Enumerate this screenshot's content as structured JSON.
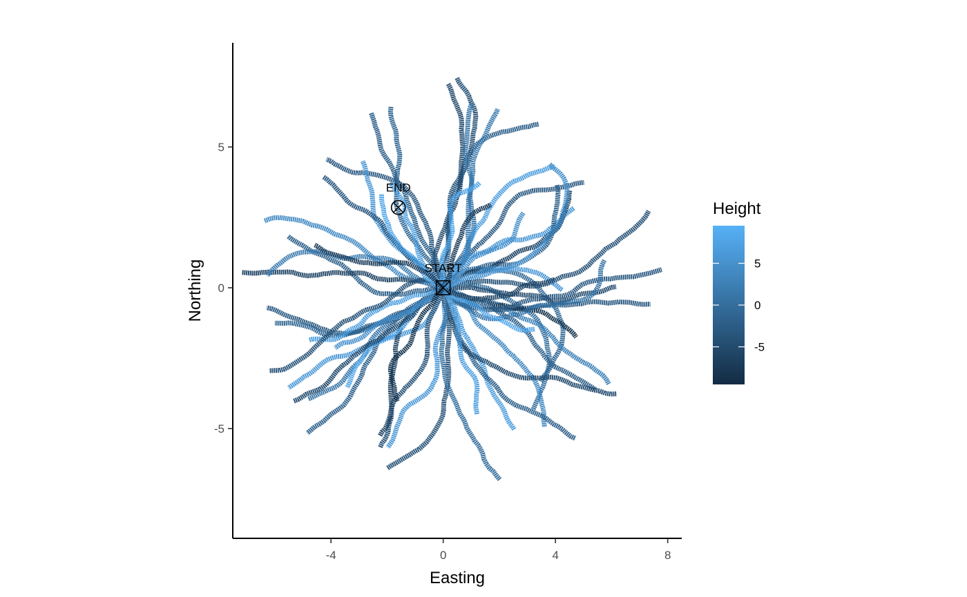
{
  "chart_data": {
    "type": "line",
    "xlabel": "Easting",
    "ylabel": "Northing",
    "xlim": [
      -7.5,
      8.5
    ],
    "ylim": [
      -8.9,
      8.7
    ],
    "xticks": [
      -4,
      0,
      4,
      8
    ],
    "xtick_labels": [
      "-4",
      "0",
      "4",
      "8"
    ],
    "yticks": [
      -5,
      0,
      5
    ],
    "ytick_labels": [
      "-5",
      "0",
      "5"
    ],
    "legend": {
      "title": "Height",
      "position": "right",
      "range": [
        -9.5,
        9.5
      ],
      "ticks": [
        -5,
        0,
        5
      ],
      "tick_labels": [
        "-5",
        "0",
        "5"
      ],
      "color_low": "#132B43",
      "color_high": "#56B1F7"
    },
    "markers": [
      {
        "label": "START",
        "x": 0,
        "y": 0,
        "shape": "square-cross"
      },
      {
        "label": "END",
        "x": -1.6,
        "y": 2.85,
        "shape": "circle-cross"
      }
    ],
    "tracks": [
      {
        "angle": 95,
        "length": 7.9,
        "height": -4
      },
      {
        "angle": 80,
        "length": 7.7,
        "height": -2
      },
      {
        "angle": 100,
        "length": 7.0,
        "height": -1
      },
      {
        "angle": 110,
        "length": 6.9,
        "height": -3
      },
      {
        "angle": 120,
        "length": 7.6,
        "height": -5
      },
      {
        "angle": 105,
        "length": 6.8,
        "height": -2
      },
      {
        "angle": 72,
        "length": 6.7,
        "height": -3
      },
      {
        "angle": 60,
        "length": 5.7,
        "height": 6
      },
      {
        "angle": 55,
        "length": 6.9,
        "height": 1
      },
      {
        "angle": 48,
        "length": 6.2,
        "height": 7
      },
      {
        "angle": 40,
        "length": 6.3,
        "height": -2
      },
      {
        "angle": 35,
        "length": 7.6,
        "height": -1
      },
      {
        "angle": 30,
        "length": 6.9,
        "height": 2
      },
      {
        "angle": 22,
        "length": 6.1,
        "height": -6
      },
      {
        "angle": 15,
        "length": 7.3,
        "height": 5
      },
      {
        "angle": 8,
        "length": 8.3,
        "height": -4
      },
      {
        "angle": 2,
        "length": 7.1,
        "height": 0
      },
      {
        "angle": -5,
        "length": 7.0,
        "height": 3
      },
      {
        "angle": -12,
        "length": 6.3,
        "height": -5
      },
      {
        "angle": -20,
        "length": 7.6,
        "height": -3
      },
      {
        "angle": -28,
        "length": 5.2,
        "height": -8
      },
      {
        "angle": -35,
        "length": 6.4,
        "height": 4
      },
      {
        "angle": -42,
        "length": 6.7,
        "height": -2
      },
      {
        "angle": -50,
        "length": 5.7,
        "height": 7
      },
      {
        "angle": -58,
        "length": 7.4,
        "height": -4
      },
      {
        "angle": -64,
        "length": 8.3,
        "height": -3
      },
      {
        "angle": -70,
        "length": 7.2,
        "height": 1
      },
      {
        "angle": -78,
        "length": 6.4,
        "height": 6
      },
      {
        "angle": -85,
        "length": 7.5,
        "height": -2
      },
      {
        "angle": -92,
        "length": 8.1,
        "height": -5
      },
      {
        "angle": -98,
        "length": 7.4,
        "height": 0
      },
      {
        "angle": -104,
        "length": 6.9,
        "height": 6
      },
      {
        "angle": -110,
        "length": 6.3,
        "height": -4
      },
      {
        "angle": -118,
        "length": 6.9,
        "height": -3
      },
      {
        "angle": -126,
        "length": 6.4,
        "height": 1
      },
      {
        "angle": -134,
        "length": 7.3,
        "height": -2
      },
      {
        "angle": -142,
        "length": 6.1,
        "height": -6
      },
      {
        "angle": -150,
        "length": 5.1,
        "height": 8
      },
      {
        "angle": -158,
        "length": 6.8,
        "height": -5
      },
      {
        "angle": -166,
        "length": 6.5,
        "height": -1
      },
      {
        "angle": -172,
        "length": 5.3,
        "height": 7
      },
      {
        "angle": 178,
        "length": 6.2,
        "height": -2
      },
      {
        "angle": 170,
        "length": 7.0,
        "height": 4
      },
      {
        "angle": 162,
        "length": 7.3,
        "height": -6
      },
      {
        "angle": 155,
        "length": 6.9,
        "height": 2
      },
      {
        "angle": 148,
        "length": 7.3,
        "height": -4
      },
      {
        "angle": 140,
        "length": 5.6,
        "height": 6
      },
      {
        "angle": 132,
        "length": 5.9,
        "height": -3
      },
      {
        "angle": 126,
        "length": 4.3,
        "height": 7
      },
      {
        "angle": 88,
        "length": 4.4,
        "height": 8
      },
      {
        "angle": 66,
        "length": 3.6,
        "height": -7
      },
      {
        "angle": 44,
        "length": 4.1,
        "height": 5
      },
      {
        "angle": 12,
        "length": 4.6,
        "height": 6
      },
      {
        "angle": -18,
        "length": 3.7,
        "height": 8
      },
      {
        "angle": -45,
        "length": 4.2,
        "height": -6
      },
      {
        "angle": -72,
        "length": 4.8,
        "height": 7
      },
      {
        "angle": -115,
        "length": 4.5,
        "height": 5
      },
      {
        "angle": -140,
        "length": 4.7,
        "height": -8
      },
      {
        "angle": 165,
        "length": 4.2,
        "height": 8
      },
      {
        "angle": 145,
        "length": 5.0,
        "height": -7
      }
    ]
  }
}
